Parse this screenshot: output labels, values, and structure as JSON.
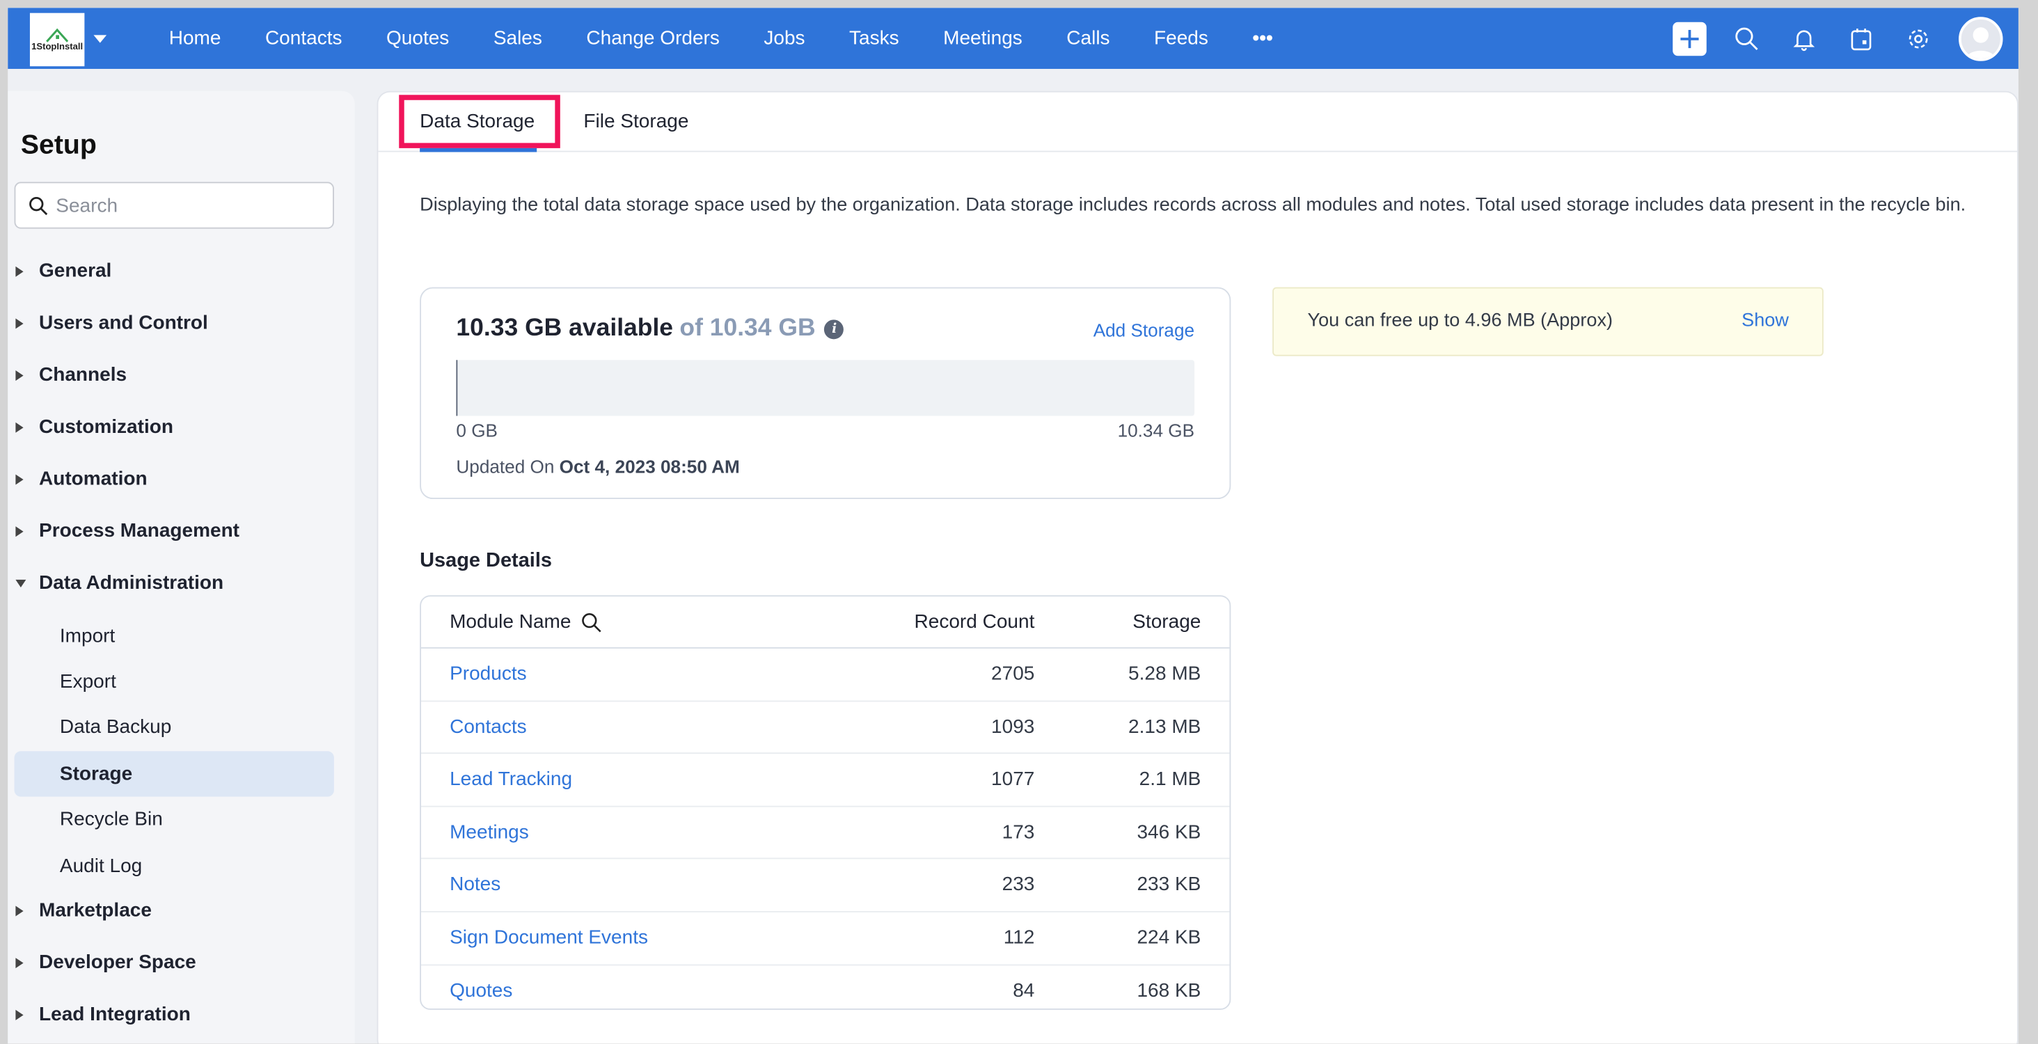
{
  "topbar": {
    "logo_text": "1StopInstall",
    "nav": [
      "Home",
      "Contacts",
      "Quotes",
      "Sales",
      "Change Orders",
      "Jobs",
      "Tasks",
      "Meetings",
      "Calls",
      "Feeds"
    ],
    "more": "•••",
    "accent": "#2f74d9"
  },
  "sidebar": {
    "title": "Setup",
    "search_placeholder": "Search",
    "items": [
      "General",
      "Users and Control",
      "Channels",
      "Customization",
      "Automation",
      "Process Management",
      "Data Administration"
    ],
    "sub_items": [
      "Import",
      "Export",
      "Data Backup",
      "Storage",
      "Recycle Bin",
      "Audit Log"
    ],
    "active": "Storage",
    "items_after": [
      "Marketplace",
      "Developer Space",
      "Lead Integration"
    ]
  },
  "tabs": {
    "data_storage": "Data Storage",
    "file_storage": "File Storage",
    "active": "Data Storage"
  },
  "description": "Displaying the total data storage space used by the organization. Data storage includes records across all modules and notes. Total used storage includes data present in the recycle bin.",
  "storage": {
    "available": "10.33 GB available",
    "of_total": "of 10.34 GB",
    "info_icon": "i",
    "add_storage": "Add Storage",
    "used_fraction": 0.001,
    "min_label": "0 GB",
    "max_label": "10.34 GB",
    "updated_label": "Updated On",
    "updated_value": "Oct 4, 2023 08:50 AM"
  },
  "free_up": {
    "text": "You can free up to 4.96 MB (Approx)",
    "action": "Show"
  },
  "usage": {
    "title": "Usage Details",
    "columns": [
      "Module Name",
      "Record Count",
      "Storage"
    ],
    "rows": [
      {
        "module": "Products",
        "count": "2705",
        "storage": "5.28 MB"
      },
      {
        "module": "Contacts",
        "count": "1093",
        "storage": "2.13 MB"
      },
      {
        "module": "Lead Tracking",
        "count": "1077",
        "storage": "2.1 MB"
      },
      {
        "module": "Meetings",
        "count": "173",
        "storage": "346 KB"
      },
      {
        "module": "Notes",
        "count": "233",
        "storage": "233 KB"
      },
      {
        "module": "Sign Document Events",
        "count": "112",
        "storage": "224 KB"
      },
      {
        "module": "Quotes",
        "count": "84",
        "storage": "168 KB"
      }
    ]
  }
}
